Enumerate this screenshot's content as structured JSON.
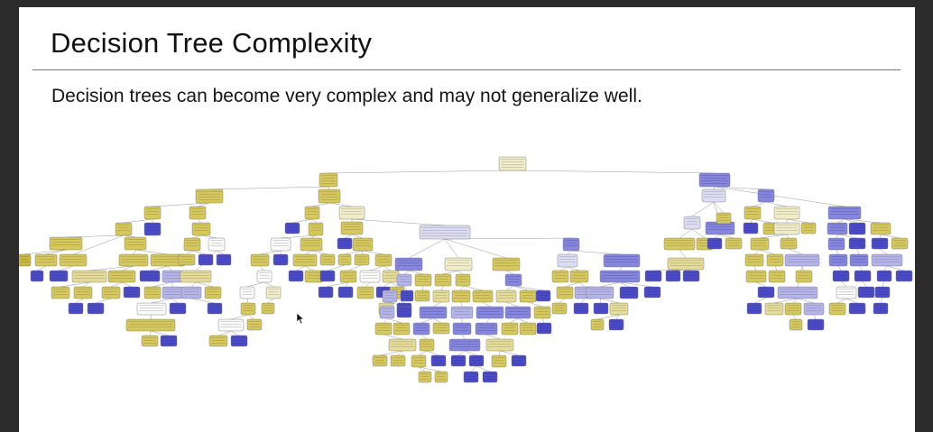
{
  "slide": {
    "title": "Decision Tree Complexity",
    "subtitle": "Decision trees can become very complex and may not generalize well."
  },
  "tree": {
    "node_colors": {
      "class_a_strong": "#c8b93a",
      "class_a": "#d6c85a",
      "class_a_light": "#e6dc98",
      "class_a_pale": "#f1ecc8",
      "neutral": "#fafafa",
      "class_b_pale": "#dcdcf3",
      "class_b_light": "#b4b4ea",
      "class_b": "#8686de",
      "class_b_strong": "#4b4bc9"
    },
    "edge_color": "#9a9a9a"
  },
  "icons": {
    "cursor": "mouse-pointer-icon"
  }
}
